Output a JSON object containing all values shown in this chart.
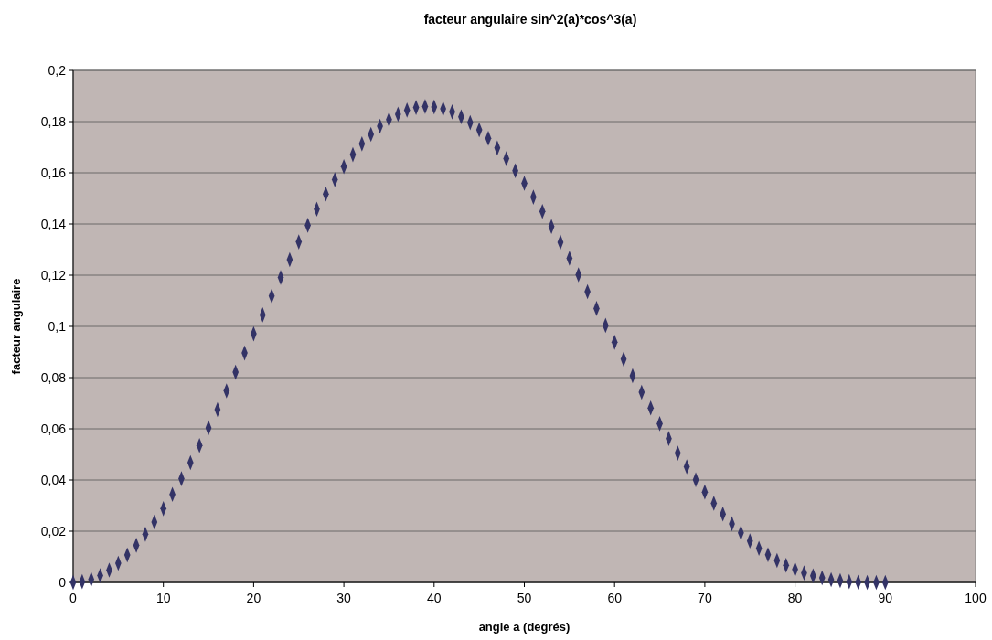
{
  "chart_data": {
    "type": "scatter",
    "title": "facteur angulaire sin^2(a)*cos^3(a)",
    "xlabel": "angle a (degrés)",
    "ylabel": "facteur angulaire",
    "x": [
      0,
      1,
      2,
      3,
      4,
      5,
      6,
      7,
      8,
      9,
      10,
      11,
      12,
      13,
      14,
      15,
      16,
      17,
      18,
      19,
      20,
      21,
      22,
      23,
      24,
      25,
      26,
      27,
      28,
      29,
      30,
      31,
      32,
      33,
      34,
      35,
      36,
      37,
      38,
      39,
      40,
      41,
      42,
      43,
      44,
      45,
      46,
      47,
      48,
      49,
      50,
      51,
      52,
      53,
      54,
      55,
      56,
      57,
      58,
      59,
      60,
      61,
      62,
      63,
      64,
      65,
      66,
      67,
      68,
      69,
      70,
      71,
      72,
      73,
      74,
      75,
      76,
      77,
      78,
      79,
      80,
      81,
      82,
      83,
      84,
      85,
      86,
      87,
      88,
      89,
      90
    ],
    "series": [
      {
        "color": "#333366",
        "values": [
          0,
          0.0003,
          0.0012,
          0.0027,
          0.0048,
          0.0075,
          0.0107,
          0.0145,
          0.0188,
          0.0236,
          0.0288,
          0.0344,
          0.0405,
          0.0468,
          0.0535,
          0.0604,
          0.0675,
          0.0748,
          0.0821,
          0.0896,
          0.0971,
          0.1045,
          0.1119,
          0.1191,
          0.1261,
          0.133,
          0.1395,
          0.1458,
          0.1517,
          0.1573,
          0.1624,
          0.1671,
          0.1713,
          0.175,
          0.1782,
          0.1808,
          0.1829,
          0.1845,
          0.1855,
          0.1859,
          0.1857,
          0.185,
          0.1838,
          0.1819,
          0.1796,
          0.1768,
          0.1735,
          0.1697,
          0.1655,
          0.1608,
          0.1559,
          0.1505,
          0.1449,
          0.139,
          0.1329,
          0.1266,
          0.1202,
          0.1136,
          0.107,
          0.1004,
          0.0938,
          0.0872,
          0.0807,
          0.0743,
          0.0681,
          0.062,
          0.0562,
          0.0505,
          0.0452,
          0.0401,
          0.0353,
          0.0309,
          0.0267,
          0.0229,
          0.0194,
          0.0162,
          0.0133,
          0.0108,
          0.0086,
          0.0067,
          0.0051,
          0.0037,
          0.0026,
          0.0018,
          0.0011,
          0.0007,
          0.0003,
          0.0001,
          0,
          0,
          0
        ]
      }
    ],
    "xlim": [
      0,
      100
    ],
    "xticks": [
      0,
      10,
      20,
      30,
      40,
      50,
      60,
      70,
      80,
      90,
      100
    ],
    "ylim": [
      0,
      0.2
    ],
    "yticks": [
      {
        "value": 0,
        "label": "0"
      },
      {
        "value": 0.02,
        "label": "0,02"
      },
      {
        "value": 0.04,
        "label": "0,04"
      },
      {
        "value": 0.06,
        "label": "0,06"
      },
      {
        "value": 0.08,
        "label": "0,08"
      },
      {
        "value": 0.1,
        "label": "0,1"
      },
      {
        "value": 0.12,
        "label": "0,12"
      },
      {
        "value": 0.14,
        "label": "0,14"
      },
      {
        "value": 0.16,
        "label": "0,16"
      },
      {
        "value": 0.18,
        "label": "0,18"
      },
      {
        "value": 0.2,
        "label": "0,2"
      }
    ],
    "grid": "y",
    "marker": "diamond"
  }
}
